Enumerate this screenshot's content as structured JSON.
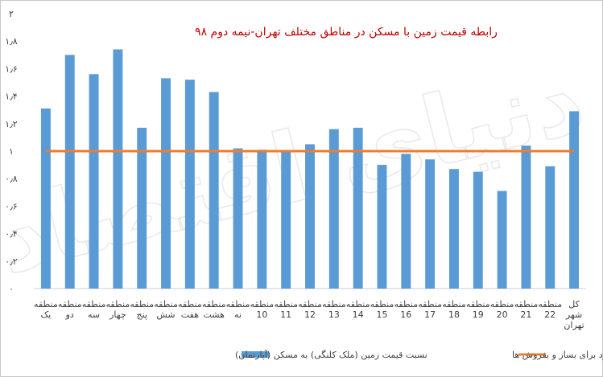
{
  "chart_data": {
    "type": "bar",
    "title": "رابطه قیمت زمین با مسکن در مناطق مختلف تهران-نیمه دوم ۹۸",
    "categories": [
      [
        "منطقه",
        "یک"
      ],
      [
        "منطقه",
        "دو"
      ],
      [
        "منطقه",
        "سه"
      ],
      [
        "منطقه",
        "چهار"
      ],
      [
        "منطقه",
        "پنج"
      ],
      [
        "منطقه",
        "شش"
      ],
      [
        "منطقه",
        "هفت"
      ],
      [
        "منطقه",
        "هشت"
      ],
      [
        "منطقه",
        "نه"
      ],
      [
        "منطقه",
        "10"
      ],
      [
        "منطقه",
        "11"
      ],
      [
        "منطقه",
        "12"
      ],
      [
        "منطقه",
        "13"
      ],
      [
        "منطقه",
        "14"
      ],
      [
        "منطقه",
        "15"
      ],
      [
        "منطقه",
        "16"
      ],
      [
        "منطقه",
        "17"
      ],
      [
        "منطقه",
        "18"
      ],
      [
        "منطقه",
        "19"
      ],
      [
        "منطقه",
        "20"
      ],
      [
        "منطقه",
        "21"
      ],
      [
        "منطقه",
        "22"
      ],
      [
        "کل",
        "شهر",
        "تهران"
      ]
    ],
    "series": [
      {
        "name": "نسبت قیمت زمین (ملک کلنگی) به مسکن (آپارتمان)",
        "type": "bar",
        "color": "#5b9bd5",
        "values": [
          1.31,
          1.7,
          1.56,
          1.74,
          1.17,
          1.53,
          1.52,
          1.43,
          1.02,
          1.01,
          1.0,
          1.05,
          1.16,
          1.17,
          0.9,
          0.98,
          0.94,
          0.87,
          0.85,
          0.71,
          1.04,
          0.89,
          1.29
        ]
      },
      {
        "name": "مرز روانی حاشیه سود برای بساز و بفروش ها",
        "type": "line",
        "color": "#ed7d31",
        "values": [
          1,
          1,
          1,
          1,
          1,
          1,
          1,
          1,
          1,
          1,
          1,
          1,
          1,
          1,
          1,
          1,
          1,
          1,
          1,
          1,
          1,
          1,
          1
        ]
      }
    ],
    "ylim": [
      0,
      2
    ],
    "yticks": [
      "۰",
      "۰٫۲",
      "۰٫۴",
      "۰٫۶",
      "۰٫۸",
      "۱",
      "۱٫۲",
      "۱٫۴",
      "۱٫۶",
      "۱٫۸",
      "۲"
    ],
    "grid": false,
    "legend_position": "bottom"
  },
  "watermark": "دنیای اقتصاد"
}
